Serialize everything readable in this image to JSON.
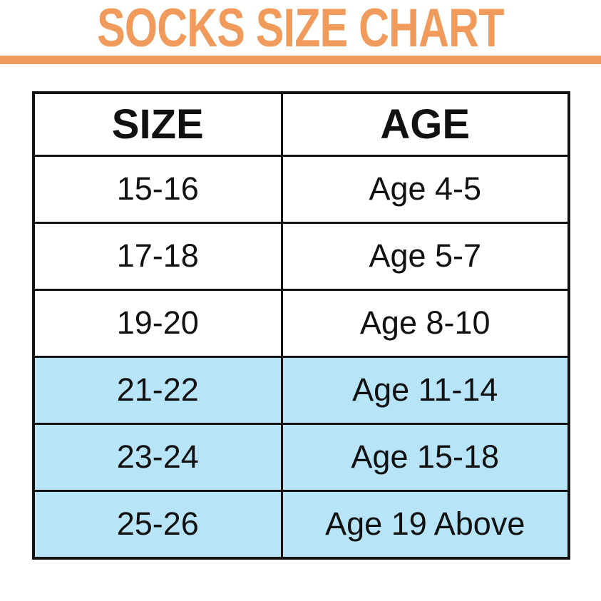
{
  "title": {
    "text": "SOCKS SIZE CHART"
  },
  "colors": {
    "accent": "#F09B5B",
    "highlight_row": "#B8E4F8",
    "border": "#131313",
    "text": "#111111",
    "background": "#ffffff"
  },
  "chart_data": {
    "type": "table",
    "title": "SOCKS SIZE CHART",
    "columns": [
      "SIZE",
      "AGE"
    ],
    "rows": [
      [
        "15-16",
        "Age 4-5"
      ],
      [
        "17-18",
        "Age 5-7"
      ],
      [
        "19-20",
        "Age 8-10"
      ],
      [
        "21-22",
        "Age 11-14"
      ],
      [
        "23-24",
        "Age 15-18"
      ],
      [
        "25-26",
        "Age 19 Above"
      ]
    ],
    "highlighted_rows": [
      3,
      4,
      5
    ],
    "layout": {
      "header_row": true,
      "grid": "on",
      "highlight_style": "light-blue-fill"
    }
  }
}
